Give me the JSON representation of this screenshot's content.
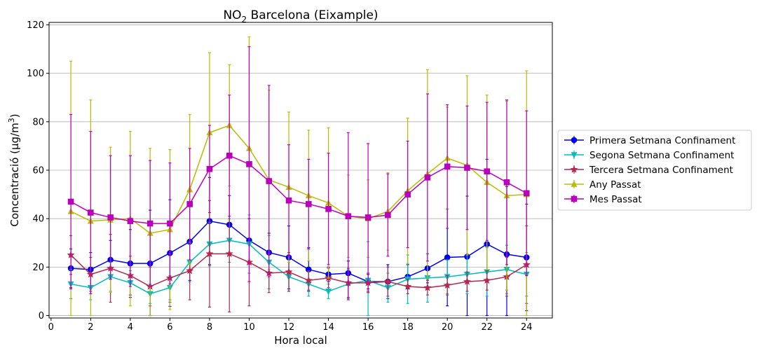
{
  "chart_data": {
    "type": "line",
    "title_main": "NO",
    "title_sub": "2",
    "title_rest": " Barcelona (Eixample)",
    "xlabel": "Hora local",
    "ylabel_text": "Concentració (µg/m",
    "ylabel_sup": "3",
    "ylabel_end": ")",
    "xlim": [
      -0.1,
      25.3
    ],
    "ylim": [
      -1,
      121
    ],
    "xticks": [
      0,
      2,
      4,
      6,
      8,
      10,
      12,
      14,
      16,
      18,
      20,
      22,
      24
    ],
    "yticks": [
      0,
      20,
      40,
      60,
      80,
      100,
      120
    ],
    "grid": "horizontal",
    "legend_position": "right",
    "x": [
      1,
      2,
      3,
      4,
      5,
      6,
      7,
      8,
      9,
      10,
      11,
      12,
      13,
      14,
      15,
      16,
      17,
      18,
      19,
      20,
      21,
      22,
      23,
      24
    ],
    "series": [
      {
        "name": "Primera Setmana Confinament",
        "color": "#0000ee",
        "marker": "circle",
        "values": [
          19.5,
          19,
          23,
          21.5,
          21.5,
          25.8,
          30.5,
          39,
          37.5,
          31,
          26,
          24,
          19,
          17,
          17.5,
          14,
          14,
          16,
          19.5,
          24,
          24.3,
          29.5,
          25.3,
          24
        ],
        "err": [
          8,
          7,
          8,
          14,
          22,
          22,
          16,
          18,
          12,
          9,
          8,
          13,
          9,
          3,
          5,
          3,
          7,
          5,
          6,
          20,
          25,
          35,
          28,
          22
        ]
      },
      {
        "name": "Segona Setmana Confinament",
        "color": "#00bbbb",
        "marker": "triangle-down",
        "values": [
          13,
          11.5,
          16,
          13.5,
          9,
          11.5,
          22,
          29.5,
          31,
          29.5,
          22,
          16,
          13,
          10,
          13,
          14.5,
          11.5,
          15,
          15.5,
          16,
          17,
          18,
          19,
          17
        ],
        "err": [
          6,
          5,
          6,
          5,
          4,
          5,
          8,
          9,
          9,
          12,
          11,
          6,
          5,
          3,
          6,
          16,
          6,
          10,
          10,
          7,
          8,
          10,
          10,
          9
        ]
      },
      {
        "name": "Tercera Setmana Confinament",
        "color": "#b22850",
        "marker": "star",
        "values": [
          25,
          17,
          19.5,
          16.5,
          12,
          15.5,
          18.5,
          25.5,
          25.5,
          22,
          17.5,
          18,
          14.5,
          15.5,
          13.5,
          13.5,
          14,
          12,
          11.5,
          12.5,
          14,
          14.5,
          16,
          21
        ],
        "err": [
          8,
          7,
          14,
          8,
          8,
          10,
          12,
          22,
          24,
          18,
          8,
          8,
          4,
          4,
          6,
          4,
          6,
          3,
          3,
          4,
          4,
          4,
          8,
          16
        ]
      },
      {
        "name": "Any Passat",
        "color": "#bbbb00",
        "marker": "triangle-up",
        "values": [
          43,
          39,
          39.5,
          40,
          34,
          35.5,
          52,
          75.5,
          78.5,
          69,
          56,
          53,
          49.5,
          46.5,
          41,
          40,
          43,
          51.5,
          58.5,
          65,
          62,
          55,
          49.5,
          50
        ],
        "err": [
          62,
          50,
          30,
          36,
          35,
          33,
          31,
          33,
          25,
          46,
          37,
          31,
          27,
          31,
          17,
          16,
          16,
          30,
          43,
          21,
          37,
          36,
          39,
          51
        ]
      },
      {
        "name": "Mes Passat",
        "color": "#bb00bb",
        "marker": "square",
        "values": [
          47,
          42.5,
          40.5,
          39,
          38,
          38,
          46,
          60.5,
          66,
          62.5,
          55.5,
          47.5,
          46,
          44,
          41,
          40.5,
          41.5,
          50,
          57,
          61.5,
          61,
          59.5,
          55,
          50.5
        ],
        "err": [
          36,
          33.5,
          25.5,
          27,
          26,
          25,
          23,
          18,
          25,
          48.5,
          39.5,
          23,
          18.5,
          23,
          34.5,
          30.5,
          17,
          22,
          34.5,
          25.5,
          25.5,
          28.5,
          34,
          34
        ]
      }
    ]
  }
}
